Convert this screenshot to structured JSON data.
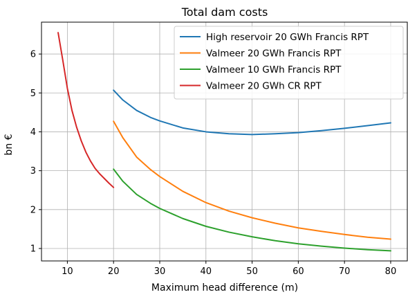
{
  "chart_data": {
    "type": "line",
    "title": "Total dam costs",
    "xlabel": "Maximum head difference (m)",
    "ylabel": "bn €",
    "xlim": [
      4.4,
      83.6
    ],
    "ylim": [
      0.68,
      6.82
    ],
    "xticks": [
      10,
      20,
      30,
      40,
      50,
      60,
      70,
      80
    ],
    "yticks": [
      1,
      2,
      3,
      4,
      5,
      6
    ],
    "grid": true,
    "legend_position": "upper right",
    "series": [
      {
        "name": "High reservoir 20 GWh Francis RPT",
        "color": "#1f77b4",
        "x": [
          20,
          22,
          25,
          28,
          30,
          35,
          40,
          45,
          50,
          55,
          60,
          65,
          70,
          75,
          80
        ],
        "y": [
          5.07,
          4.82,
          4.55,
          4.37,
          4.28,
          4.1,
          4.0,
          3.95,
          3.93,
          3.95,
          3.98,
          4.03,
          4.09,
          4.16,
          4.23
        ]
      },
      {
        "name": "Valmeer 20 GWh Francis RPT",
        "color": "#ff7f0e",
        "x": [
          20,
          22,
          25,
          28,
          30,
          35,
          40,
          45,
          50,
          55,
          60,
          65,
          70,
          75,
          80
        ],
        "y": [
          4.27,
          3.85,
          3.35,
          3.03,
          2.85,
          2.47,
          2.18,
          1.96,
          1.79,
          1.65,
          1.53,
          1.44,
          1.36,
          1.29,
          1.24
        ]
      },
      {
        "name": "Valmeer 10 GWh Francis RPT",
        "color": "#2ca02c",
        "x": [
          20,
          22,
          25,
          28,
          30,
          35,
          40,
          45,
          50,
          55,
          60,
          65,
          70,
          75,
          80
        ],
        "y": [
          3.04,
          2.73,
          2.39,
          2.16,
          2.03,
          1.77,
          1.57,
          1.42,
          1.3,
          1.2,
          1.12,
          1.06,
          1.01,
          0.97,
          0.94
        ]
      },
      {
        "name": "Valmeer 20 GWh CR RPT",
        "color": "#d62728",
        "x": [
          8,
          9,
          10,
          11,
          12,
          13,
          14,
          15,
          16,
          17,
          18,
          19,
          20
        ],
        "y": [
          6.55,
          5.85,
          5.12,
          4.55,
          4.12,
          3.77,
          3.48,
          3.25,
          3.06,
          2.92,
          2.8,
          2.68,
          2.57
        ]
      }
    ]
  }
}
